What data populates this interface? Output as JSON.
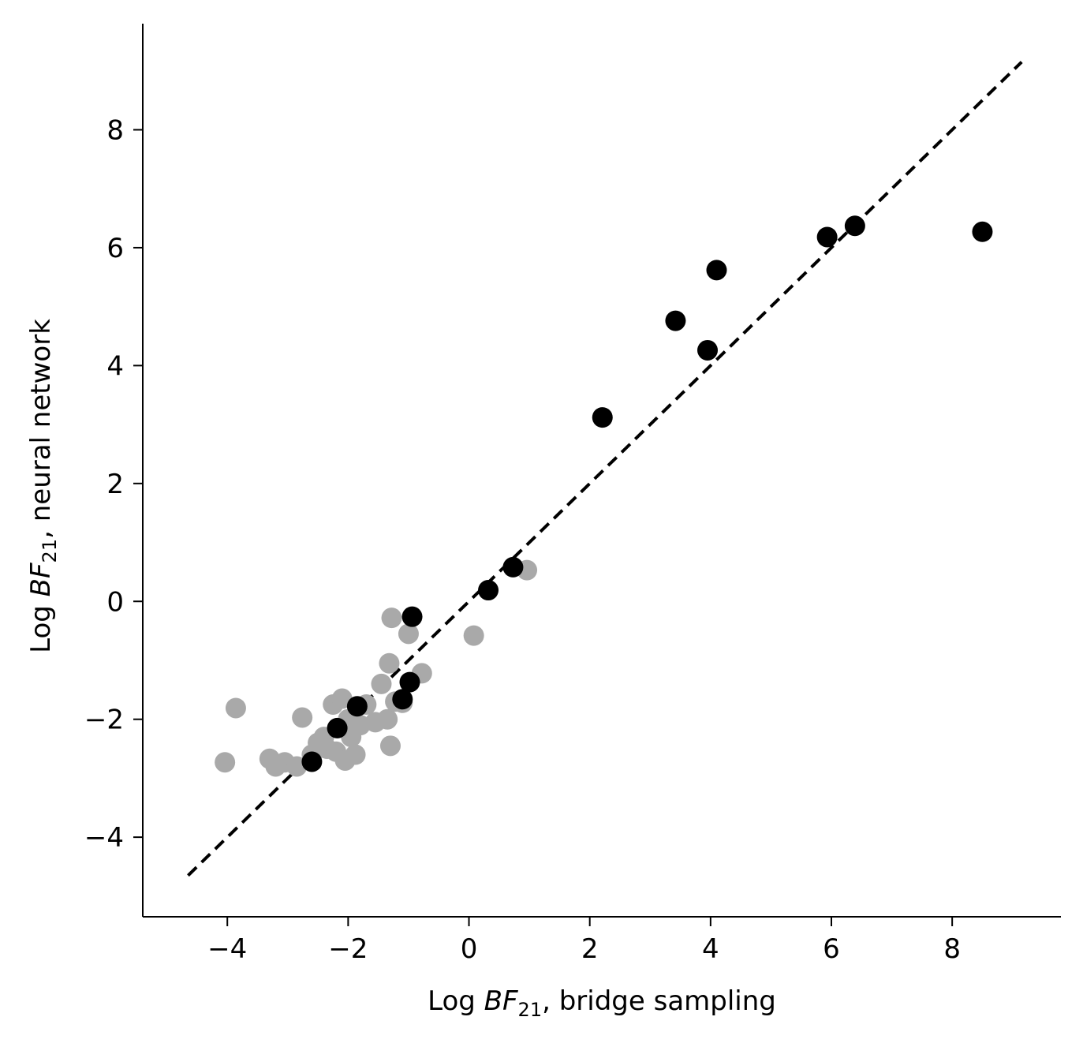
{
  "chart_data": {
    "type": "scatter",
    "xlabel": {
      "prefix": "Log ",
      "var": "BF",
      "sub": "21",
      "suffix": ", bridge sampling"
    },
    "ylabel": {
      "prefix": "Log ",
      "var": "BF",
      "sub": "21",
      "suffix": ", neural network"
    },
    "xlim": [
      -5.4,
      9.8
    ],
    "ylim": [
      -5.35,
      9.8
    ],
    "xticks": [
      -4,
      -2,
      0,
      2,
      4,
      6,
      8
    ],
    "yticks": [
      -4,
      -2,
      0,
      2,
      4,
      6,
      8
    ],
    "grid": false,
    "reference_line": {
      "x": [
        -4.65,
        9.15
      ],
      "y": [
        -4.65,
        9.15
      ],
      "style": "dashed",
      "color": "#000000"
    },
    "series": [
      {
        "color": "#a9a9a9",
        "points": [
          [
            -4.04,
            -2.73
          ],
          [
            -3.86,
            -1.81
          ],
          [
            -3.3,
            -2.67
          ],
          [
            -3.2,
            -2.8
          ],
          [
            -3.05,
            -2.73
          ],
          [
            -2.85,
            -2.8
          ],
          [
            -2.76,
            -1.97
          ],
          [
            -2.6,
            -2.6
          ],
          [
            -2.5,
            -2.4
          ],
          [
            -2.4,
            -2.3
          ],
          [
            -2.35,
            -2.5
          ],
          [
            -2.25,
            -1.75
          ],
          [
            -2.2,
            -2.55
          ],
          [
            -2.1,
            -1.65
          ],
          [
            -2.05,
            -2.7
          ],
          [
            -2.0,
            -2.0
          ],
          [
            -1.95,
            -2.3
          ],
          [
            -1.88,
            -2.6
          ],
          [
            -1.8,
            -2.1
          ],
          [
            -1.7,
            -1.75
          ],
          [
            -1.55,
            -2.05
          ],
          [
            -1.45,
            -1.4
          ],
          [
            -1.35,
            -2.0
          ],
          [
            -1.32,
            -1.05
          ],
          [
            -1.3,
            -2.45
          ],
          [
            -1.28,
            -0.28
          ],
          [
            -1.22,
            -1.7
          ],
          [
            -1.1,
            -1.72
          ],
          [
            -1.0,
            -0.55
          ],
          [
            -0.78,
            -1.22
          ],
          [
            0.08,
            -0.58
          ],
          [
            0.96,
            0.53
          ]
        ]
      },
      {
        "color": "#000000",
        "points": [
          [
            -2.6,
            -2.72
          ],
          [
            -2.18,
            -2.15
          ],
          [
            -1.85,
            -1.78
          ],
          [
            -1.1,
            -1.66
          ],
          [
            -0.98,
            -1.37
          ],
          [
            -0.94,
            -0.26
          ],
          [
            0.32,
            0.19
          ],
          [
            0.73,
            0.58
          ],
          [
            2.21,
            3.12
          ],
          [
            3.42,
            4.76
          ],
          [
            3.95,
            4.26
          ],
          [
            4.1,
            5.62
          ],
          [
            5.93,
            6.18
          ],
          [
            6.39,
            6.37
          ],
          [
            8.5,
            6.27
          ]
        ]
      }
    ]
  }
}
